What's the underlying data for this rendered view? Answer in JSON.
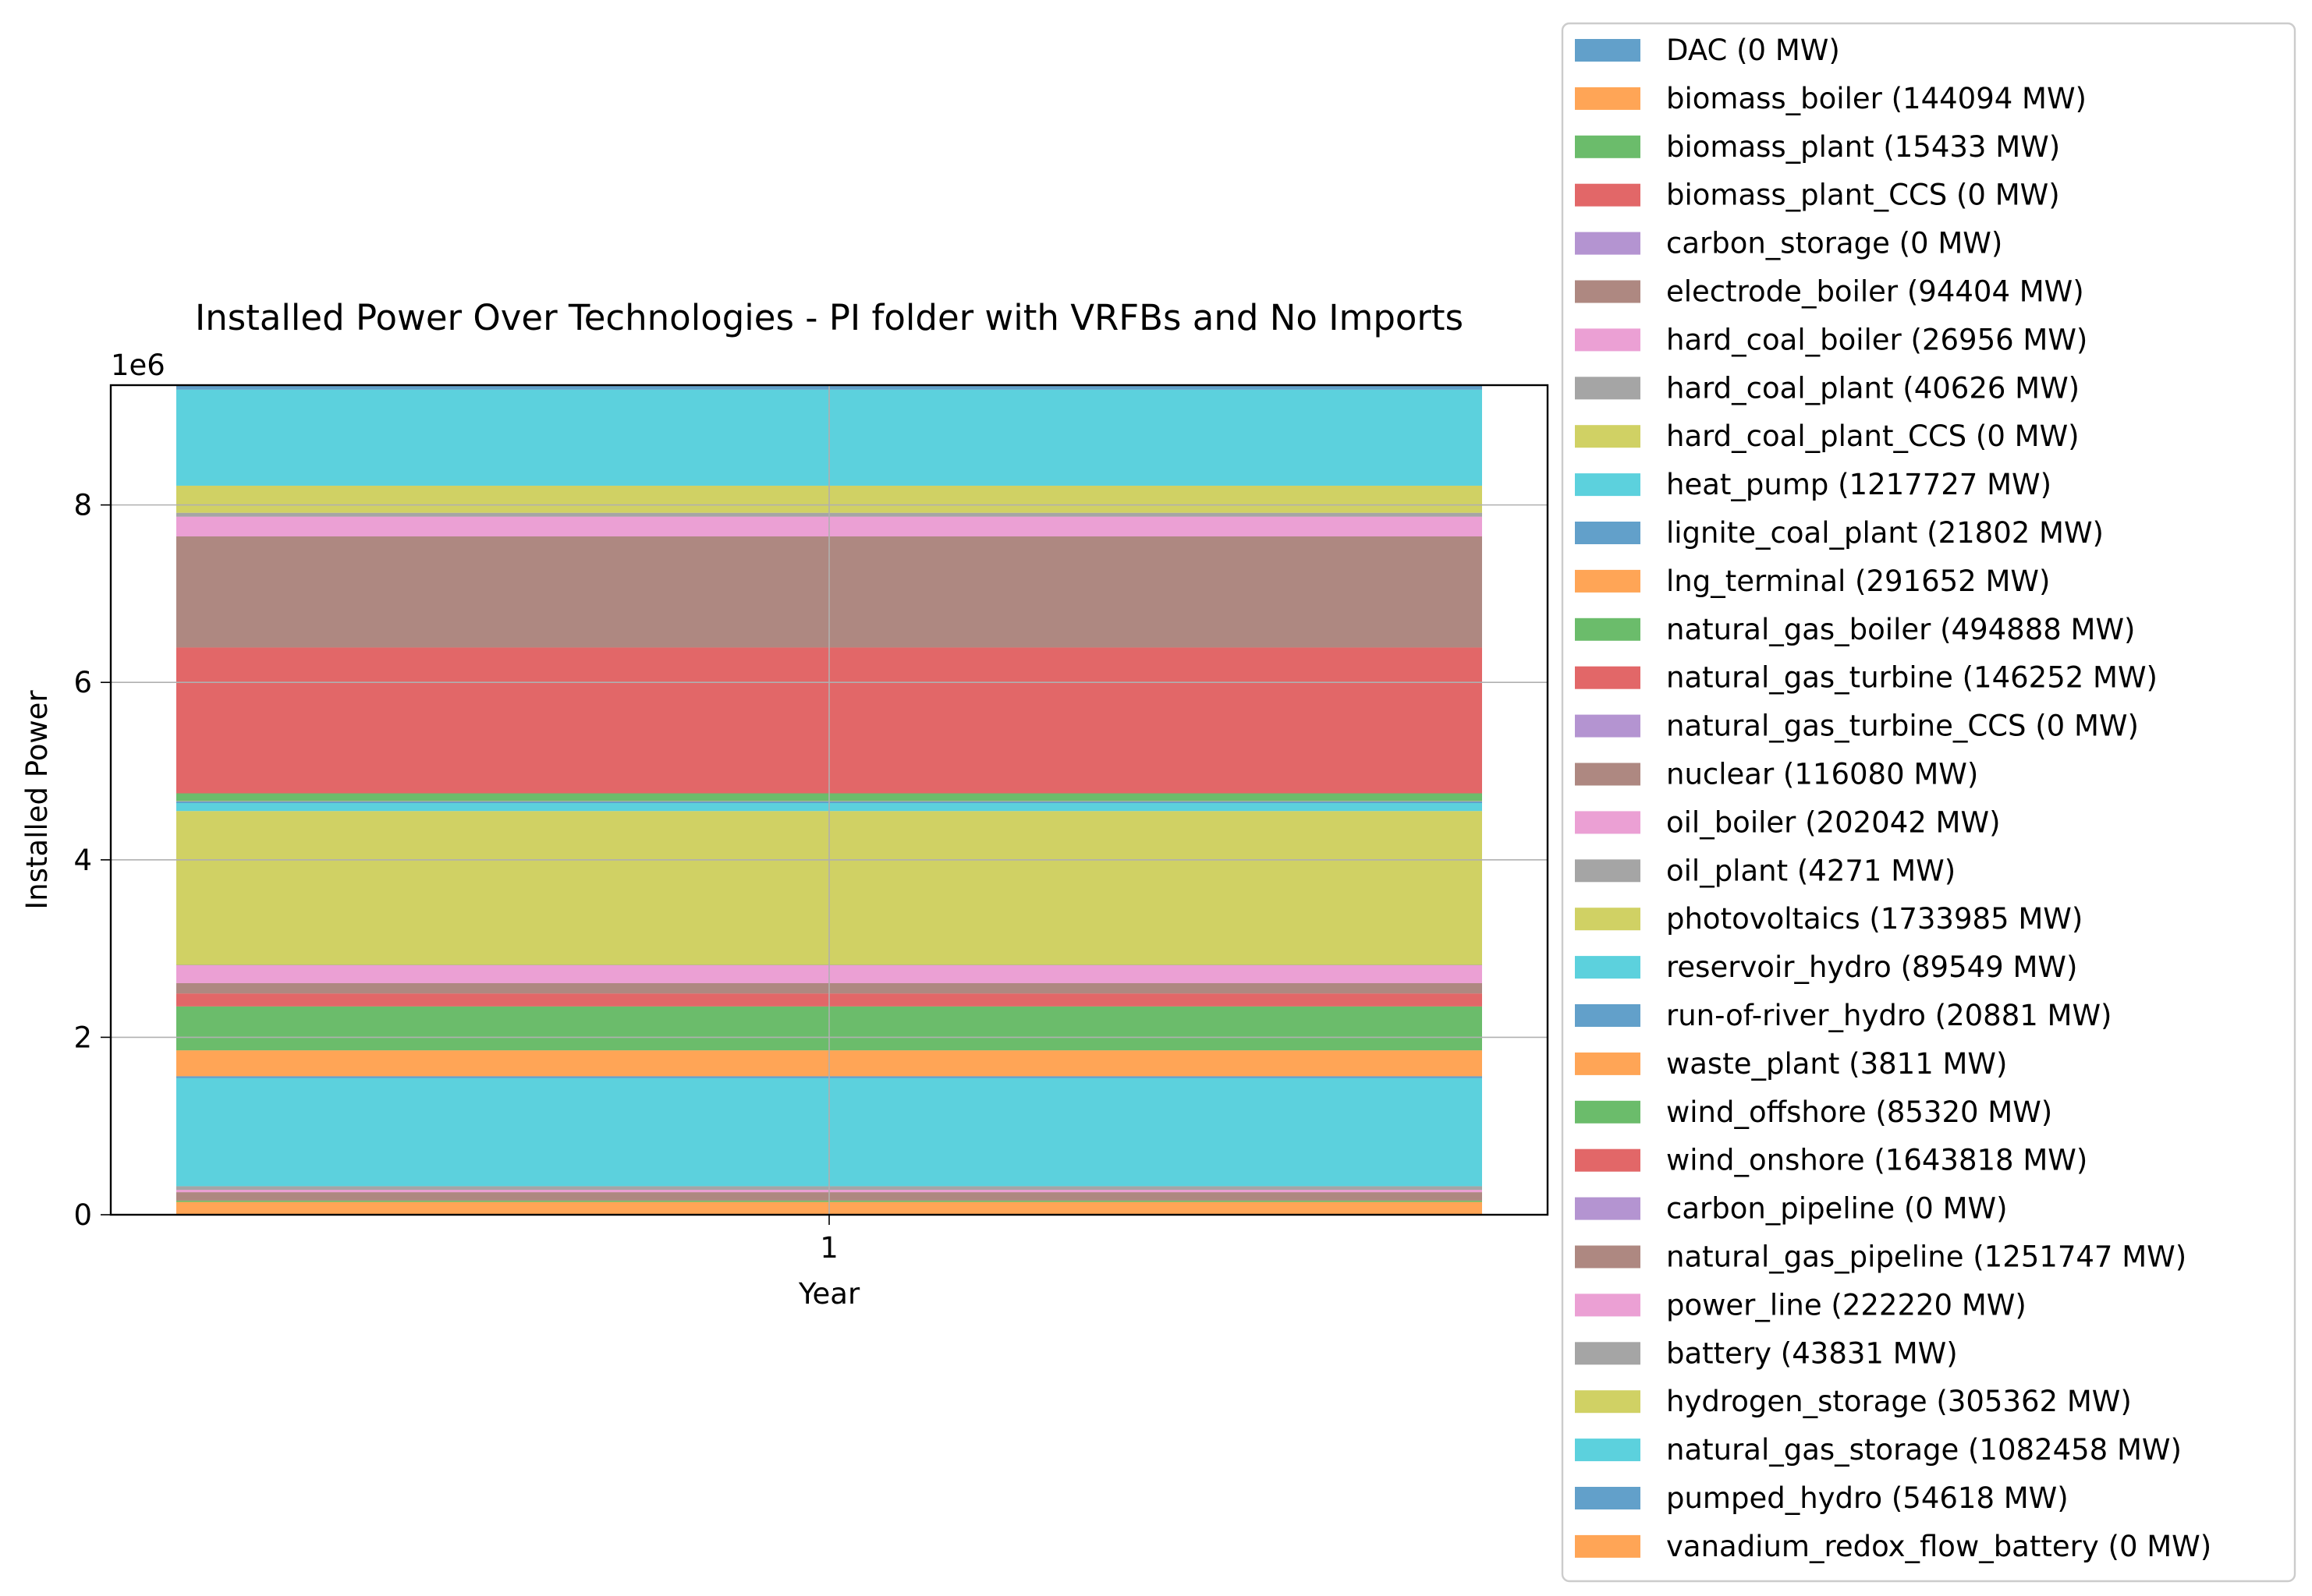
{
  "chart_data": {
    "type": "area",
    "stacked": true,
    "title": "Installed Power Over Technologies - PI folder with VRFBs and No Imports",
    "xlabel": "Year",
    "ylabel": "Installed Power",
    "offset_text": "1e6",
    "x": [
      1
    ],
    "x_tick_labels": [
      "1"
    ],
    "ylim": [
      0,
      9350000
    ],
    "y_ticks": [
      0,
      2,
      4,
      6,
      8
    ],
    "y_tick_labels": [
      "0",
      "2",
      "4",
      "6",
      "8"
    ],
    "grid": true,
    "legend_position": "outside-right",
    "series": [
      {
        "name": "DAC (0 MW)",
        "value": 0,
        "color": "#1f77b4"
      },
      {
        "name": "biomass_boiler (144094 MW)",
        "value": 144094,
        "color": "#ff7f0e"
      },
      {
        "name": "biomass_plant (15433 MW)",
        "value": 15433,
        "color": "#2ca02c"
      },
      {
        "name": "biomass_plant_CCS (0 MW)",
        "value": 0,
        "color": "#d62728"
      },
      {
        "name": "carbon_storage (0 MW)",
        "value": 0,
        "color": "#9467bd"
      },
      {
        "name": "electrode_boiler (94404 MW)",
        "value": 94404,
        "color": "#8c564b"
      },
      {
        "name": "hard_coal_boiler (26956 MW)",
        "value": 26956,
        "color": "#e377c2"
      },
      {
        "name": "hard_coal_plant (40626 MW)",
        "value": 40626,
        "color": "#7f7f7f"
      },
      {
        "name": "hard_coal_plant_CCS (0 MW)",
        "value": 0,
        "color": "#bcbd22"
      },
      {
        "name": "heat_pump (1217727 MW)",
        "value": 1217727,
        "color": "#17becf"
      },
      {
        "name": "lignite_coal_plant (21802 MW)",
        "value": 21802,
        "color": "#1f77b4"
      },
      {
        "name": "lng_terminal (291652 MW)",
        "value": 291652,
        "color": "#ff7f0e"
      },
      {
        "name": "natural_gas_boiler (494888 MW)",
        "value": 494888,
        "color": "#2ca02c"
      },
      {
        "name": "natural_gas_turbine (146252 MW)",
        "value": 146252,
        "color": "#d62728"
      },
      {
        "name": "natural_gas_turbine_CCS (0 MW)",
        "value": 0,
        "color": "#9467bd"
      },
      {
        "name": "nuclear (116080 MW)",
        "value": 116080,
        "color": "#8c564b"
      },
      {
        "name": "oil_boiler (202042 MW)",
        "value": 202042,
        "color": "#e377c2"
      },
      {
        "name": "oil_plant (4271 MW)",
        "value": 4271,
        "color": "#7f7f7f"
      },
      {
        "name": "photovoltaics (1733985 MW)",
        "value": 1733985,
        "color": "#bcbd22"
      },
      {
        "name": "reservoir_hydro (89549 MW)",
        "value": 89549,
        "color": "#17becf"
      },
      {
        "name": "run-of-river_hydro (20881 MW)",
        "value": 20881,
        "color": "#1f77b4"
      },
      {
        "name": "waste_plant (3811 MW)",
        "value": 3811,
        "color": "#ff7f0e"
      },
      {
        "name": "wind_offshore (85320 MW)",
        "value": 85320,
        "color": "#2ca02c"
      },
      {
        "name": "wind_onshore (1643818 MW)",
        "value": 1643818,
        "color": "#d62728"
      },
      {
        "name": "carbon_pipeline (0 MW)",
        "value": 0,
        "color": "#9467bd"
      },
      {
        "name": "natural_gas_pipeline (1251747 MW)",
        "value": 1251747,
        "color": "#8c564b"
      },
      {
        "name": "power_line (222220 MW)",
        "value": 222220,
        "color": "#e377c2"
      },
      {
        "name": "battery (43831 MW)",
        "value": 43831,
        "color": "#7f7f7f"
      },
      {
        "name": "hydrogen_storage (305362 MW)",
        "value": 305362,
        "color": "#bcbd22"
      },
      {
        "name": "natural_gas_storage (1082458 MW)",
        "value": 1082458,
        "color": "#17becf"
      },
      {
        "name": "pumped_hydro (54618 MW)",
        "value": 54618,
        "color": "#1f77b4"
      },
      {
        "name": "vanadium_redox_flow_battery (0 MW)",
        "value": 0,
        "color": "#ff7f0e"
      }
    ]
  }
}
